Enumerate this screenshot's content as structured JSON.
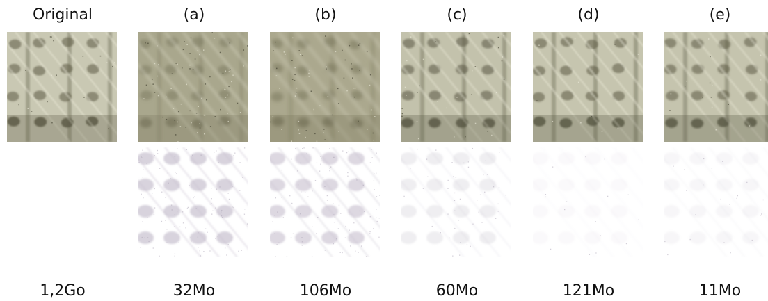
{
  "figure": {
    "columns": [
      {
        "id": "original",
        "title": "Original",
        "size": "1,2Go",
        "has_error_map": false,
        "tone": "#c9c8b3",
        "band": "#5c5a45",
        "blur": 0.0,
        "noise": 0.1
      },
      {
        "id": "a",
        "title": "(a)",
        "size": "32Mo",
        "has_error_map": true,
        "tone": "#a9a78d",
        "band": "#7e7b62",
        "blur": 1.2,
        "noise": 0.45
      },
      {
        "id": "b",
        "title": "(b)",
        "size": "106Mo",
        "has_error_map": true,
        "tone": "#aba88e",
        "band": "#7a775d",
        "blur": 1.6,
        "noise": 0.4
      },
      {
        "id": "c",
        "title": "(c)",
        "size": "60Mo",
        "has_error_map": true,
        "tone": "#c3c2ac",
        "band": "#5a5844",
        "blur": 0.2,
        "noise": 0.18
      },
      {
        "id": "d",
        "title": "(d)",
        "size": "121Mo",
        "has_error_map": true,
        "tone": "#c6c5af",
        "band": "#5b5945",
        "blur": 0.1,
        "noise": 0.06
      },
      {
        "id": "e",
        "title": "(e)",
        "size": "11Mo",
        "has_error_map": true,
        "tone": "#c5c4ae",
        "band": "#5b5945",
        "blur": 0.3,
        "noise": 0.09
      }
    ]
  }
}
